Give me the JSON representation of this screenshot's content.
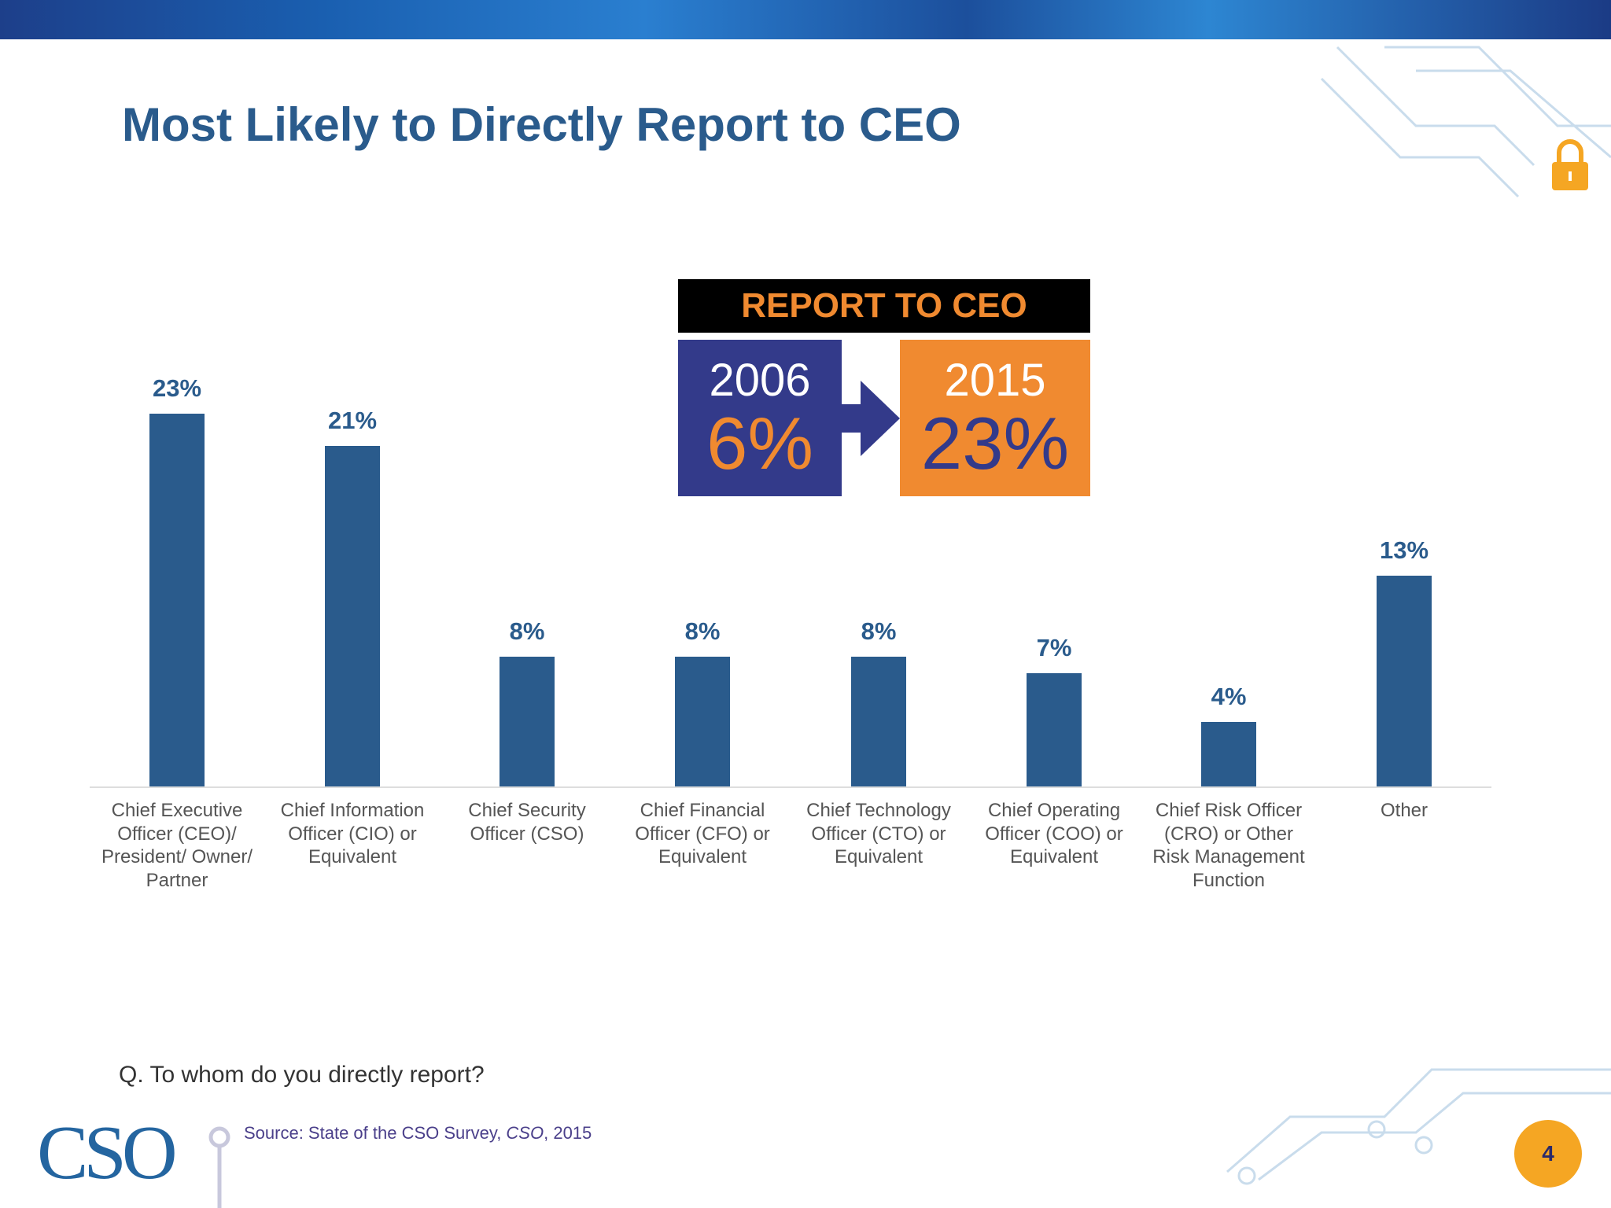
{
  "slide": {
    "title": "Most Likely to Directly Report to CEO",
    "question": "Q. To whom do you directly report?",
    "source_prefix": "Source: State of the CSO Survey, ",
    "source_italic": "CSO",
    "source_suffix": ", 2015",
    "logo": "CSO",
    "page_number": "4"
  },
  "inset": {
    "heading": "REPORT TO CEO",
    "left": {
      "year": "2006",
      "value": "6%"
    },
    "right": {
      "year": "2015",
      "value": "23%"
    },
    "colors": {
      "left": "#333a8a",
      "right": "#f08a30"
    }
  },
  "chart_data": {
    "type": "bar",
    "title": "",
    "xlabel": "",
    "ylabel": "",
    "ylim": [
      0,
      25
    ],
    "grid": false,
    "color": "#2a5b8c",
    "categories": [
      [
        "Chief Executive",
        "Officer (CEO)/",
        "President/ Owner/",
        "Partner"
      ],
      [
        "Chief Information",
        "Officer (CIO) or",
        "Equivalent"
      ],
      [
        "Chief Security",
        "Officer (CSO)"
      ],
      [
        "Chief Financial",
        "Officer (CFO) or",
        "Equivalent"
      ],
      [
        "Chief Technology",
        "Officer (CTO) or",
        "Equivalent"
      ],
      [
        "Chief Operating",
        "Officer (COO) or",
        "Equivalent"
      ],
      [
        "Chief Risk Officer",
        "(CRO) or Other",
        "Risk Management",
        "Function"
      ],
      [
        "Other"
      ]
    ],
    "values": [
      23,
      21,
      8,
      8,
      8,
      7,
      4,
      13
    ],
    "labels": [
      "23%",
      "21%",
      "8%",
      "8%",
      "8%",
      "7%",
      "4%",
      "13%"
    ]
  }
}
